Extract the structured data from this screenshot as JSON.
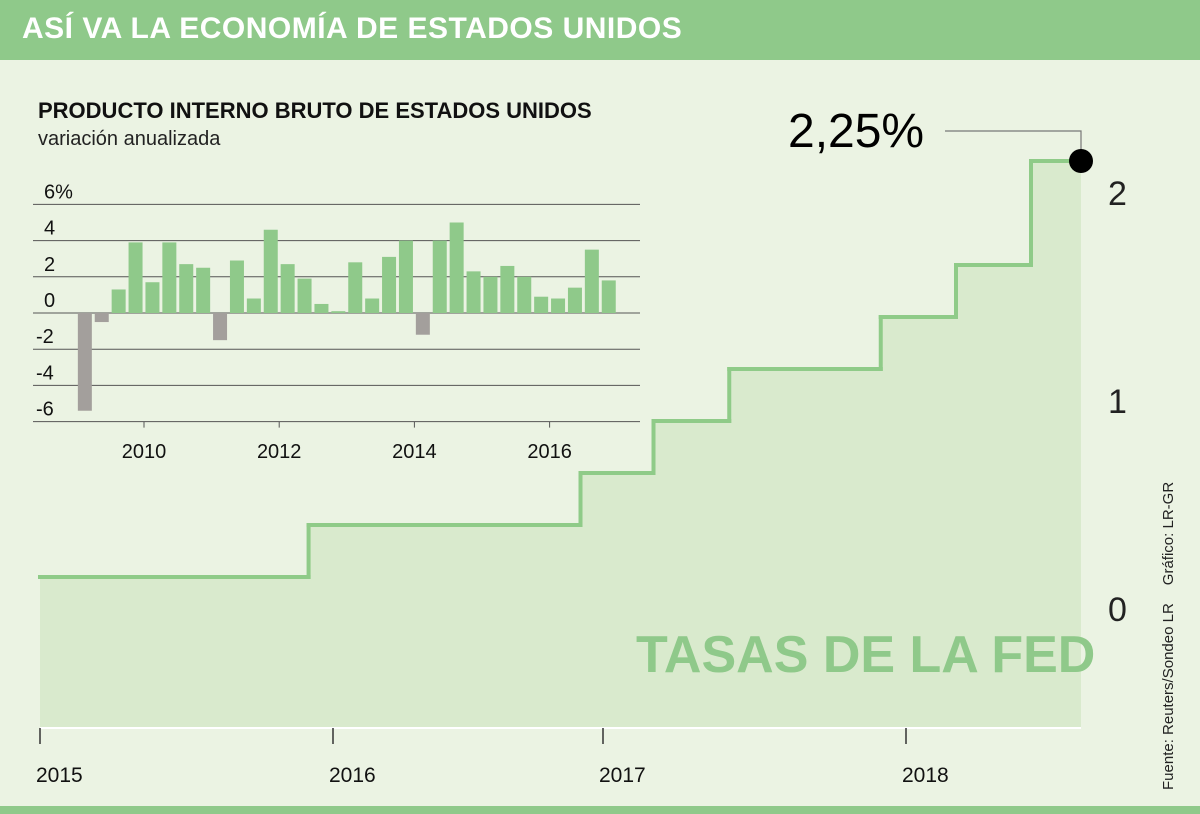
{
  "header": {
    "title": "ASÍ VA LA ECONOMÍA DE ESTADOS UNIDOS"
  },
  "source": {
    "fuente": "Fuente: Reuters/Sondeo LR",
    "grafico": "Gráfico: LR-GR"
  },
  "colors": {
    "header": "#8fc98a",
    "background": "#ebf3e3",
    "positive": "#8fc98a",
    "negative": "#a39f9c",
    "step_line": "#8fcb88",
    "step_fill": "#d9eacd"
  },
  "chart_data": [
    {
      "type": "bar",
      "title": "PRODUCTO INTERNO BRUTO DE ESTADOS UNIDOS",
      "subtitle": "variación anualizada",
      "categories": [
        "2009-Q1",
        "2009-Q2",
        "2009-Q3",
        "2009-Q4",
        "2010-Q1",
        "2010-Q2",
        "2010-Q3",
        "2010-Q4",
        "2011-Q1",
        "2011-Q2",
        "2011-Q3",
        "2011-Q4",
        "2012-Q1",
        "2012-Q2",
        "2012-Q3",
        "2012-Q4",
        "2013-Q1",
        "2013-Q2",
        "2013-Q3",
        "2013-Q4",
        "2014-Q1",
        "2014-Q2",
        "2014-Q3",
        "2014-Q4",
        "2015-Q1",
        "2015-Q2",
        "2015-Q3",
        "2015-Q4",
        "2016-Q1",
        "2016-Q2",
        "2016-Q3",
        "2016-Q4"
      ],
      "values": [
        -5.4,
        -0.5,
        1.3,
        3.9,
        1.7,
        3.9,
        2.7,
        2.5,
        -1.5,
        2.9,
        0.8,
        4.6,
        2.7,
        1.9,
        0.5,
        0.1,
        2.8,
        0.8,
        3.1,
        4.0,
        -1.2,
        4.0,
        5.0,
        2.3,
        2.0,
        2.6,
        2.0,
        0.9,
        0.8,
        1.4,
        3.5,
        1.8
      ],
      "ylim": [
        -6,
        6
      ],
      "yticks": [
        6,
        4,
        2,
        0,
        -2,
        -4,
        -6
      ],
      "ytick_labels": [
        "6%",
        "4",
        "2",
        "0",
        "-2",
        "-4",
        "-6"
      ],
      "xticks": [
        2010,
        2012,
        2014,
        2016
      ],
      "xtick_labels": [
        "2010",
        "2012",
        "2014",
        "2016"
      ],
      "grid": true
    },
    {
      "type": "line",
      "step": true,
      "title": "TASAS DE LA FED",
      "points": [
        {
          "date": "2015-01",
          "value": 0.25
        },
        {
          "date": "2015-12",
          "value": 0.5
        },
        {
          "date": "2016-12",
          "value": 0.75
        },
        {
          "date": "2017-03",
          "value": 1.0
        },
        {
          "date": "2017-06",
          "value": 1.25
        },
        {
          "date": "2017-12",
          "value": 1.5
        },
        {
          "date": "2018-03",
          "value": 1.75
        },
        {
          "date": "2018-06",
          "value": 2.25
        }
      ],
      "end_date": "2018-08",
      "yticks": [
        0,
        1,
        2
      ],
      "ytick_labels": [
        "0",
        "1",
        "2"
      ],
      "xticks": [
        2015,
        2016,
        2017,
        2018
      ],
      "xtick_labels": [
        "2015",
        "2016",
        "2017",
        "2018"
      ],
      "annotation": "2,25%",
      "grid": false
    }
  ]
}
